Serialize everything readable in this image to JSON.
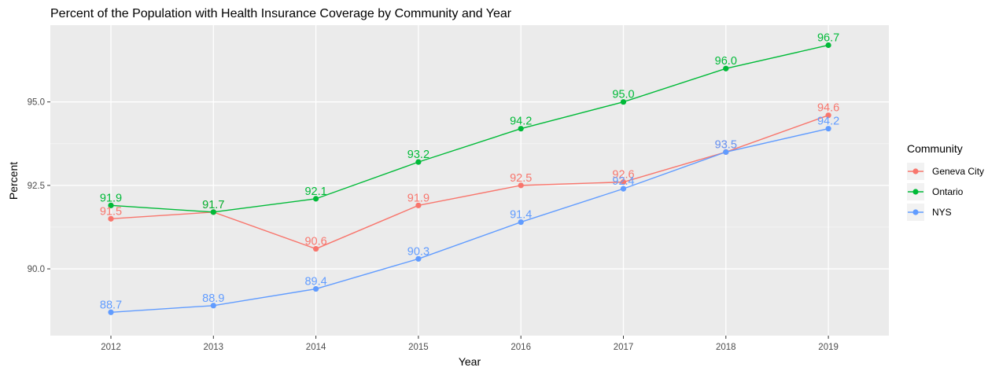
{
  "chart_data": {
    "type": "line",
    "title": "Percent of the Population with Health Insurance Coverage by Community and Year",
    "xlabel": "Year",
    "ylabel": "Percent",
    "x": [
      2012,
      2013,
      2014,
      2015,
      2016,
      2017,
      2018,
      2019
    ],
    "x_tick_labels": [
      "2012",
      "2013",
      "2014",
      "2015",
      "2016",
      "2017",
      "2018",
      "2019"
    ],
    "ylim": [
      88.0,
      97.3
    ],
    "y_ticks": [
      90.0,
      92.5,
      95.0
    ],
    "y_tick_labels": [
      "90.0",
      "92.5",
      "95.0"
    ],
    "grid": true,
    "legend": {
      "title": "Community",
      "position": "right"
    },
    "series": [
      {
        "name": "Geneva City",
        "color": "#F8766D",
        "values": [
          91.5,
          91.7,
          90.6,
          91.9,
          92.5,
          92.6,
          93.5,
          94.6
        ],
        "labels": [
          "91.5",
          "91.7",
          "90.6",
          "91.9",
          "92.5",
          "92.6",
          "93.5",
          "94.6"
        ]
      },
      {
        "name": "Ontario",
        "color": "#00BA38",
        "values": [
          91.9,
          91.7,
          92.1,
          93.2,
          94.2,
          95.0,
          96.0,
          96.7
        ],
        "labels": [
          "91.9",
          "91.7",
          "92.1",
          "93.2",
          "94.2",
          "95.0",
          "96.0",
          "96.7"
        ]
      },
      {
        "name": "NYS",
        "color": "#619CFF",
        "values": [
          88.7,
          88.9,
          89.4,
          90.3,
          91.4,
          92.4,
          93.5,
          94.2
        ],
        "labels": [
          "88.7",
          "88.9",
          "89.4",
          "90.3",
          "91.4",
          "92.4",
          "93.5",
          "94.2"
        ]
      }
    ]
  }
}
